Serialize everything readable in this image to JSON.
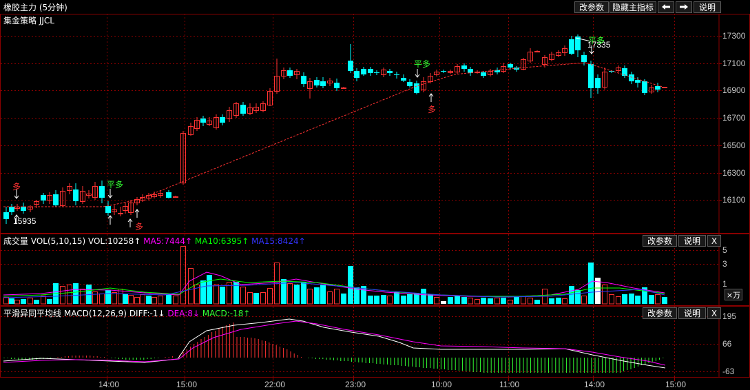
{
  "title": "橡胶主力 (5分钟)",
  "strategy": "集金策略 JJCL",
  "toolbar": {
    "change_params": "改参数",
    "hide_indicator": "隐藏主指标",
    "prev_icon": "left-arrow-icon",
    "next_icon": "right-arrow-icon",
    "help": "说明"
  },
  "price_axis": [
    "17300",
    "17100",
    "16900",
    "16700",
    "16500",
    "16300",
    "16100"
  ],
  "annotations": {
    "high_price": "17335",
    "low_price": "15935",
    "signal_long": "多",
    "signal_flat_long": "平多"
  },
  "volume_panel": {
    "name": "成交量",
    "vol_params": "VOL(5,10,15)",
    "vol": "VOL:10258↑",
    "ma5": "MA5:7444↑",
    "ma10": "MA10:6395↑",
    "ma15": "MA15:8424↑",
    "change_params": "改参数",
    "help": "说明",
    "close": "X",
    "axis": [
      "5",
      "3",
      "1"
    ],
    "unit": "×万"
  },
  "macd_panel": {
    "name": "平滑异同平均线",
    "params": "MACD(12,26,9)",
    "diff": "DIFF:-1↓",
    "dea": "DEA:8↓",
    "macd": "MACD:-18↑",
    "change_params": "改参数",
    "help": "说明",
    "close": "X",
    "axis": [
      "195",
      "66",
      "-63"
    ]
  },
  "time_axis": [
    "14:00",
    "15:00",
    "22:00",
    "23:00",
    "10:00",
    "11:00",
    "14:00",
    "15:00"
  ],
  "colors": {
    "up": "#ff3232",
    "down": "#00ffff",
    "grid": "#8b0000",
    "ma5": "#ff00ff",
    "ma10": "#00ff00",
    "ma15": "#3333ff",
    "diff": "#ffffff",
    "dea": "#ff00ff",
    "signal_green": "#33ff33"
  }
}
